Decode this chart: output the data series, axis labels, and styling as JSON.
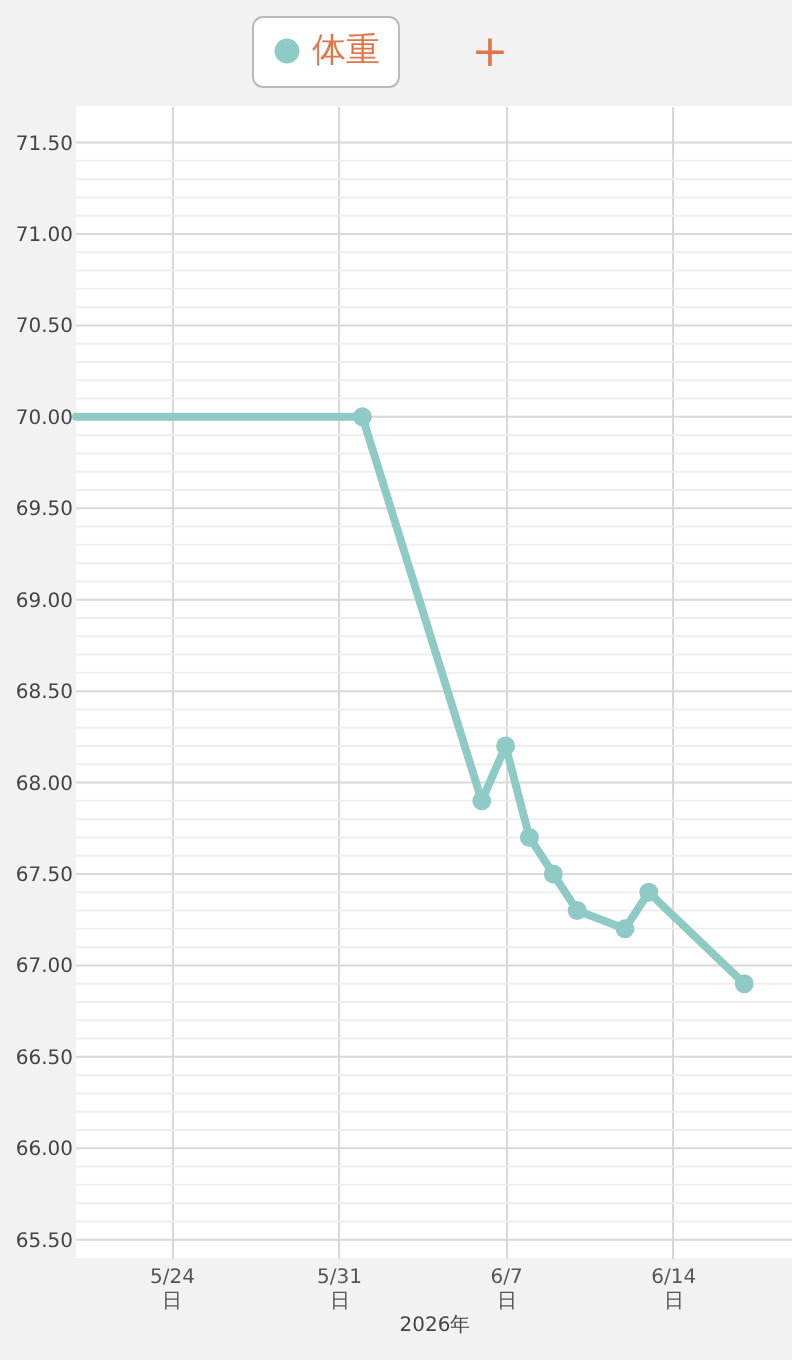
{
  "chart_data": {
    "type": "line",
    "xlabel": "2026年",
    "legend": "top",
    "annotations": [
      "+"
    ],
    "x": [
      "2026-05-20",
      "2026-06-01",
      "2026-06-06",
      "2026-06-07",
      "2026-06-08",
      "2026-06-09",
      "2026-06-10",
      "2026-06-12",
      "2026-06-13",
      "2026-06-17"
    ],
    "series": [
      {
        "name": "体重",
        "color": "#8ecbc7",
        "values": [
          70.0,
          70.0,
          67.9,
          68.2,
          67.7,
          67.5,
          67.3,
          67.2,
          67.4,
          66.9
        ]
      }
    ],
    "xlim": [
      "2026-05-20",
      "2026-06-19"
    ],
    "xticks": [
      {
        "value": "2026-05-24",
        "label": "5/24\n日"
      },
      {
        "value": "2026-05-31",
        "label": "5/31\n日"
      },
      {
        "value": "2026-06-07",
        "label": "6/7\n日"
      },
      {
        "value": "2026-06-14",
        "label": "6/14\n日"
      }
    ],
    "ylim": [
      65.4,
      71.7
    ],
    "yticks": [
      {
        "value": 65.5,
        "label": "65.50"
      },
      {
        "value": 65.6,
        "label": null
      },
      {
        "value": 65.7,
        "label": null
      },
      {
        "value": 65.8,
        "label": null
      },
      {
        "value": 65.9,
        "label": null
      },
      {
        "value": 66.0,
        "label": "66.00"
      },
      {
        "value": 66.1,
        "label": null
      },
      {
        "value": 66.2,
        "label": null
      },
      {
        "value": 66.3,
        "label": null
      },
      {
        "value": 66.4,
        "label": null
      },
      {
        "value": 66.5,
        "label": "66.50"
      },
      {
        "value": 66.6,
        "label": null
      },
      {
        "value": 66.7,
        "label": null
      },
      {
        "value": 66.8,
        "label": null
      },
      {
        "value": 66.9,
        "label": null
      },
      {
        "value": 67.0,
        "label": "67.00"
      },
      {
        "value": 67.1,
        "label": null
      },
      {
        "value": 67.2,
        "label": null
      },
      {
        "value": 67.3,
        "label": null
      },
      {
        "value": 67.4,
        "label": null
      },
      {
        "value": 67.5,
        "label": "67.50"
      },
      {
        "value": 67.6,
        "label": null
      },
      {
        "value": 67.7,
        "label": null
      },
      {
        "value": 67.8,
        "label": null
      },
      {
        "value": 67.9,
        "label": null
      },
      {
        "value": 68.0,
        "label": "68.00"
      },
      {
        "value": 68.1,
        "label": null
      },
      {
        "value": 68.2,
        "label": null
      },
      {
        "value": 68.3,
        "label": null
      },
      {
        "value": 68.4,
        "label": null
      },
      {
        "value": 68.5,
        "label": "68.50"
      },
      {
        "value": 68.6,
        "label": null
      },
      {
        "value": 68.7,
        "label": null
      },
      {
        "value": 68.8,
        "label": null
      },
      {
        "value": 68.9,
        "label": null
      },
      {
        "value": 69.0,
        "label": "69.00"
      },
      {
        "value": 69.1,
        "label": null
      },
      {
        "value": 69.2,
        "label": null
      },
      {
        "value": 69.3,
        "label": null
      },
      {
        "value": 69.4,
        "label": null
      },
      {
        "value": 69.5,
        "label": "69.50"
      },
      {
        "value": 69.6,
        "label": null
      },
      {
        "value": 69.7,
        "label": null
      },
      {
        "value": 69.8,
        "label": null
      },
      {
        "value": 69.9,
        "label": null
      },
      {
        "value": 70.0,
        "label": "70.00"
      },
      {
        "value": 70.1,
        "label": null
      },
      {
        "value": 70.2,
        "label": null
      },
      {
        "value": 70.3,
        "label": null
      },
      {
        "value": 70.4,
        "label": null
      },
      {
        "value": 70.5,
        "label": "70.50"
      },
      {
        "value": 70.6,
        "label": null
      },
      {
        "value": 70.7,
        "label": null
      },
      {
        "value": 70.8,
        "label": null
      },
      {
        "value": 70.9,
        "label": null
      },
      {
        "value": 71.0,
        "label": "71.00"
      },
      {
        "value": 71.1,
        "label": null
      },
      {
        "value": 71.2,
        "label": null
      },
      {
        "value": 71.3,
        "label": null
      },
      {
        "value": 71.4,
        "label": null
      },
      {
        "value": 71.5,
        "label": "71.50"
      }
    ],
    "grid": true,
    "marker": "circle",
    "line_style": "solid"
  }
}
